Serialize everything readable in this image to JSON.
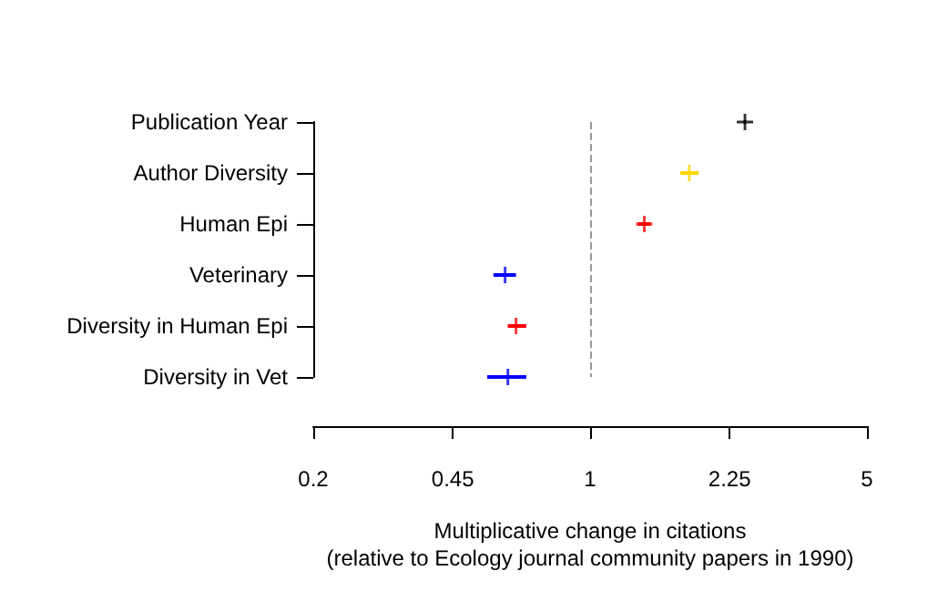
{
  "chart_data": {
    "type": "scatter",
    "orientation": "horizontal",
    "categories": [
      "Publication Year",
      "Author Diversity",
      "Human Epi",
      "Veterinary",
      "Diversity in Human Epi",
      "Diversity in Vet"
    ],
    "values": [
      2.46,
      1.78,
      1.37,
      0.61,
      0.65,
      0.62
    ],
    "errors": [
      [
        2.44,
        2.48
      ],
      [
        1.69,
        1.88
      ],
      [
        1.32,
        1.42
      ],
      [
        0.57,
        0.65
      ],
      [
        0.62,
        0.69
      ],
      [
        0.55,
        0.69
      ]
    ],
    "colors": [
      "#000000",
      "#ffd700",
      "#ff0000",
      "#0000ff",
      "#ff0000",
      "#0000ff"
    ],
    "xlabel": "Multiplicative change in citations\n(relative to Ecology journal community papers in 1990)",
    "marker": "cross",
    "log": "x",
    "xlim": [
      0.2,
      5
    ],
    "xticks": [
      0.2,
      0.45,
      1,
      2.25,
      5
    ],
    "grid": false,
    "ref_lines": [
      {
        "axis": "x",
        "value": 1,
        "color": "#999999",
        "line_style": "dashed"
      }
    ]
  }
}
